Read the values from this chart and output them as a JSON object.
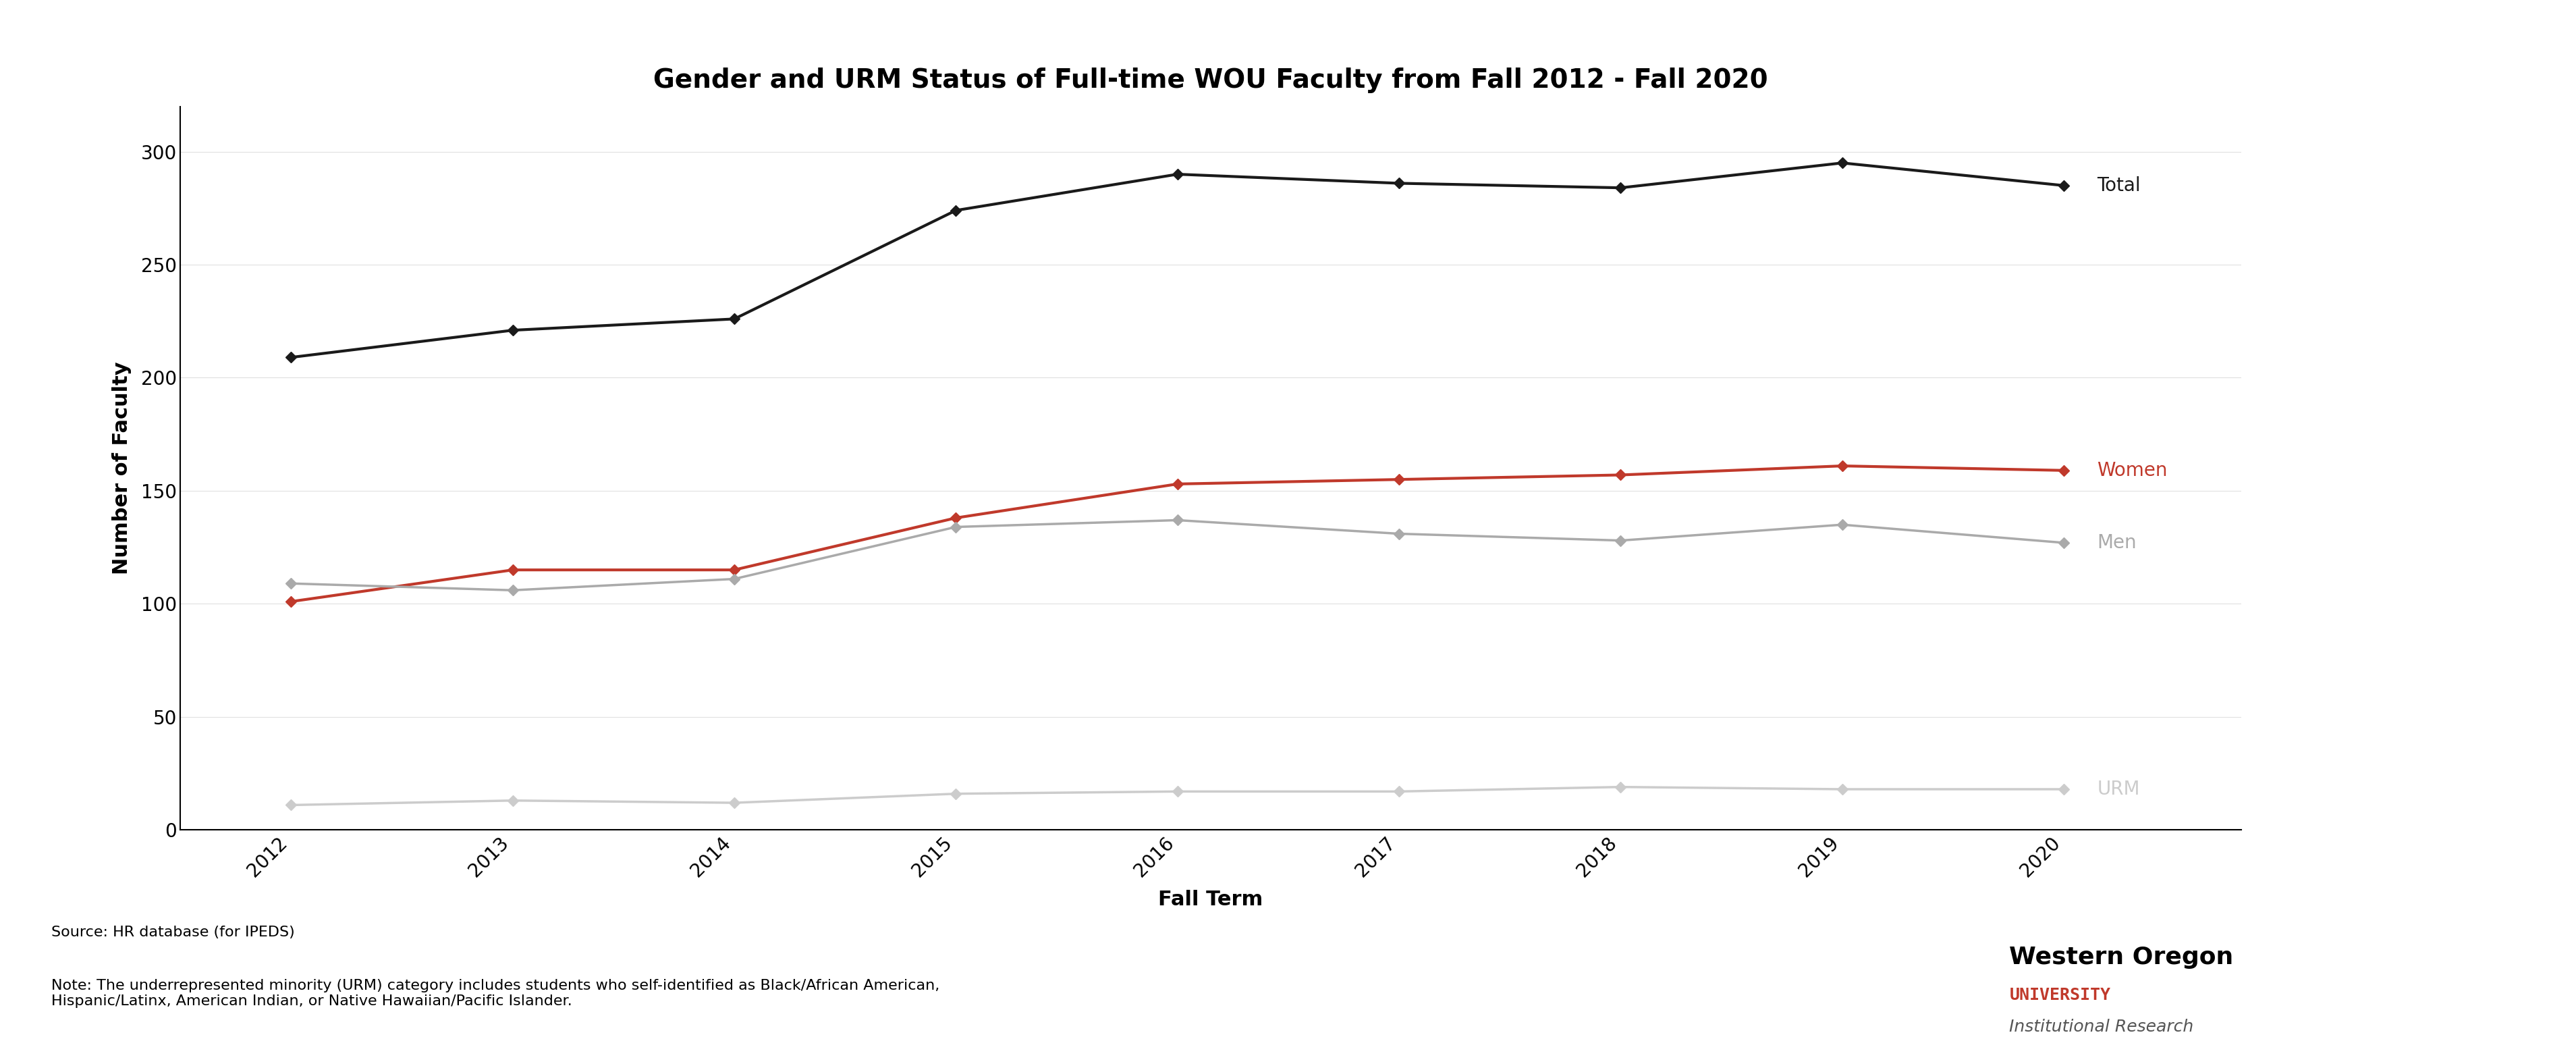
{
  "title": "Gender and URM Status of Full-time WOU Faculty from Fall 2012 - Fall 2020",
  "xlabel": "Fall Term",
  "ylabel": "Number of Faculty",
  "years": [
    2012,
    2013,
    2014,
    2015,
    2016,
    2017,
    2018,
    2019,
    2020
  ],
  "total": [
    209,
    221,
    226,
    274,
    290,
    286,
    284,
    295,
    285
  ],
  "women": [
    101,
    115,
    115,
    138,
    153,
    155,
    157,
    161,
    159
  ],
  "men": [
    109,
    106,
    111,
    134,
    137,
    131,
    128,
    135,
    127
  ],
  "urm": [
    11,
    13,
    12,
    16,
    17,
    17,
    19,
    18,
    18
  ],
  "color_total": "#1a1a1a",
  "color_women": "#c0392b",
  "color_men": "#aaaaaa",
  "color_urm": "#cccccc",
  "ylim": [
    0,
    320
  ],
  "yticks": [
    0,
    50,
    100,
    150,
    200,
    250,
    300
  ],
  "source_text": "Source: HR database (for IPEDS)",
  "note_text": "Note: The underrepresented minority (URM) category includes students who self-identified as Black/African American,\nHispanic/Latinx, American Indian, or Native Hawaiian/Pacific Islander.",
  "bg_color": "#ffffff",
  "title_fontsize": 28,
  "axis_label_fontsize": 22,
  "tick_fontsize": 20,
  "line_label_fontsize": 20,
  "annotation_fontsize": 16,
  "marker_size": 8,
  "line_width": 2.5
}
